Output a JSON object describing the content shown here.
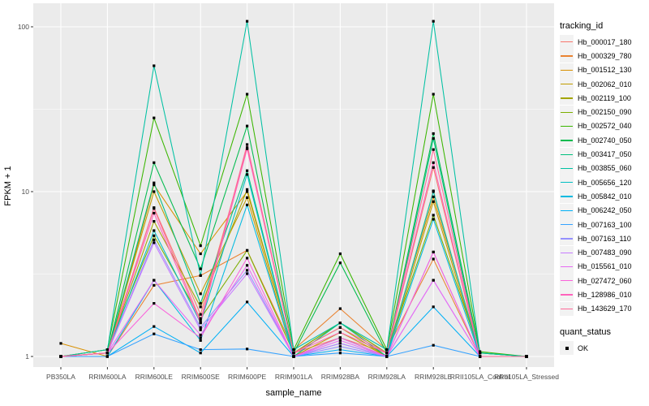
{
  "chart_data": {
    "type": "line",
    "title": "",
    "xlabel": "sample_name",
    "ylabel": "FPKM + 1",
    "y_scale": "log10",
    "ylim": [
      0.87,
      139
    ],
    "y_ticks": [
      1,
      10,
      100
    ],
    "y_tick_labels": [
      "1",
      "10",
      "100"
    ],
    "y_minor_ticks": [
      3.162,
      31.623
    ],
    "grid": "on",
    "legend_position": "right",
    "panel_bg": "#EBEBEB",
    "grid_color": "#FFFFFF",
    "point_color": "#000000",
    "categories": [
      "PB350LA",
      "RRIM600LA",
      "RRIM600LE",
      "RRIM600SE",
      "RRIM600PE",
      "RRIM901LA",
      "RRIM928BA",
      "RRIM928LA",
      "RRIM928LE",
      "RRII105LA_Control",
      "RRII105LA_Stressed"
    ],
    "legend": {
      "tracking_title": "tracking_id",
      "quant_title": "quant_status",
      "quant_label": "OK"
    },
    "series": [
      {
        "name": "Hb_000017_180",
        "color": "#F8766D",
        "values": [
          1.0,
          1.05,
          8.0,
          1.8,
          18.5,
          1.05,
          1.3,
          1.05,
          14.0,
          1.0,
          1.0
        ]
      },
      {
        "name": "Hb_000329_780",
        "color": "#EA8331",
        "values": [
          1.0,
          1.0,
          2.7,
          3.1,
          4.4,
          1.1,
          1.95,
          1.1,
          3.9,
          1.0,
          1.0
        ]
      },
      {
        "name": "Hb_001512_130",
        "color": "#D89000",
        "values": [
          1.2,
          1.0,
          11.0,
          4.2,
          10.0,
          1.05,
          1.6,
          1.05,
          9.3,
          1.05,
          1.0
        ]
      },
      {
        "name": "Hb_002062_010",
        "color": "#C09B00",
        "values": [
          1.0,
          1.05,
          10.0,
          2.4,
          9.2,
          1.0,
          1.4,
          1.0,
          8.7,
          1.0,
          1.0
        ]
      },
      {
        "name": "Hb_002119_100",
        "color": "#A3A500",
        "values": [
          1.0,
          1.05,
          6.6,
          2.0,
          10.3,
          1.05,
          1.5,
          1.0,
          10.1,
          1.0,
          1.0
        ]
      },
      {
        "name": "Hb_002150_090",
        "color": "#7CAE00",
        "values": [
          1.0,
          1.1,
          5.4,
          1.7,
          4.4,
          1.05,
          1.6,
          1.05,
          7.2,
          1.05,
          1.0
        ]
      },
      {
        "name": "Hb_002572_040",
        "color": "#39B600",
        "values": [
          1.0,
          1.1,
          28.0,
          4.7,
          39.0,
          1.1,
          4.2,
          1.1,
          39.0,
          1.07,
          1.0
        ]
      },
      {
        "name": "Hb_002740_050",
        "color": "#00BB4E",
        "values": [
          1.0,
          1.05,
          15.0,
          3.4,
          25.0,
          1.05,
          3.7,
          1.05,
          22.5,
          1.05,
          1.0
        ]
      },
      {
        "name": "Hb_003417_050",
        "color": "#00BF7D",
        "values": [
          1.0,
          1.05,
          11.3,
          2.1,
          13.4,
          1.0,
          1.6,
          1.0,
          21.0,
          1.0,
          1.0
        ]
      },
      {
        "name": "Hb_003855_060",
        "color": "#00C1A3",
        "values": [
          1.0,
          1.1,
          58.0,
          3.1,
          108.0,
          1.1,
          1.6,
          1.1,
          108.0,
          1.05,
          1.0
        ]
      },
      {
        "name": "Hb_005656_120",
        "color": "#00BFC4",
        "values": [
          1.0,
          1.05,
          5.8,
          1.6,
          12.7,
          1.0,
          1.3,
          1.0,
          10.0,
          1.0,
          1.0
        ]
      },
      {
        "name": "Hb_005842_010",
        "color": "#00BAE0",
        "values": [
          1.0,
          1.0,
          2.9,
          1.25,
          8.3,
          1.0,
          1.2,
          1.0,
          6.8,
          1.0,
          1.0
        ]
      },
      {
        "name": "Hb_006242_050",
        "color": "#00B0F6",
        "values": [
          1.0,
          1.0,
          1.52,
          1.05,
          2.14,
          1.0,
          1.1,
          1.0,
          2.0,
          1.0,
          1.0
        ]
      },
      {
        "name": "Hb_007163_100",
        "color": "#35A2FF",
        "values": [
          1.0,
          1.0,
          1.37,
          1.1,
          1.11,
          1.0,
          1.05,
          1.0,
          1.17,
          1.0,
          1.0
        ]
      },
      {
        "name": "Hb_007163_110",
        "color": "#9590FF",
        "values": [
          1.0,
          1.05,
          5.1,
          1.5,
          3.33,
          1.0,
          1.15,
          1.0,
          4.3,
          1.0,
          1.0
        ]
      },
      {
        "name": "Hb_007483_090",
        "color": "#C77CFF",
        "values": [
          1.0,
          1.05,
          4.9,
          1.45,
          3.18,
          1.0,
          1.2,
          1.0,
          2.9,
          1.0,
          1.0
        ]
      },
      {
        "name": "Hb_015561_010",
        "color": "#E76BF3",
        "values": [
          1.0,
          1.05,
          2.9,
          1.35,
          3.57,
          1.0,
          1.25,
          1.0,
          2.9,
          1.0,
          1.0
        ]
      },
      {
        "name": "Hb_027472_060",
        "color": "#FA62DB",
        "values": [
          1.0,
          1.05,
          2.1,
          1.3,
          3.95,
          1.0,
          1.3,
          1.0,
          4.3,
          1.0,
          1.0
        ]
      },
      {
        "name": "Hb_128986_010",
        "color": "#FF62BC",
        "values": [
          1.0,
          1.05,
          7.4,
          1.6,
          18.2,
          1.05,
          1.4,
          1.05,
          15.0,
          1.0,
          1.0
        ]
      },
      {
        "name": "Hb_143629_170",
        "color": "#FF6A98",
        "values": [
          1.0,
          1.05,
          7.9,
          1.65,
          19.3,
          1.05,
          1.5,
          1.05,
          18.0,
          1.0,
          1.0
        ]
      }
    ]
  }
}
